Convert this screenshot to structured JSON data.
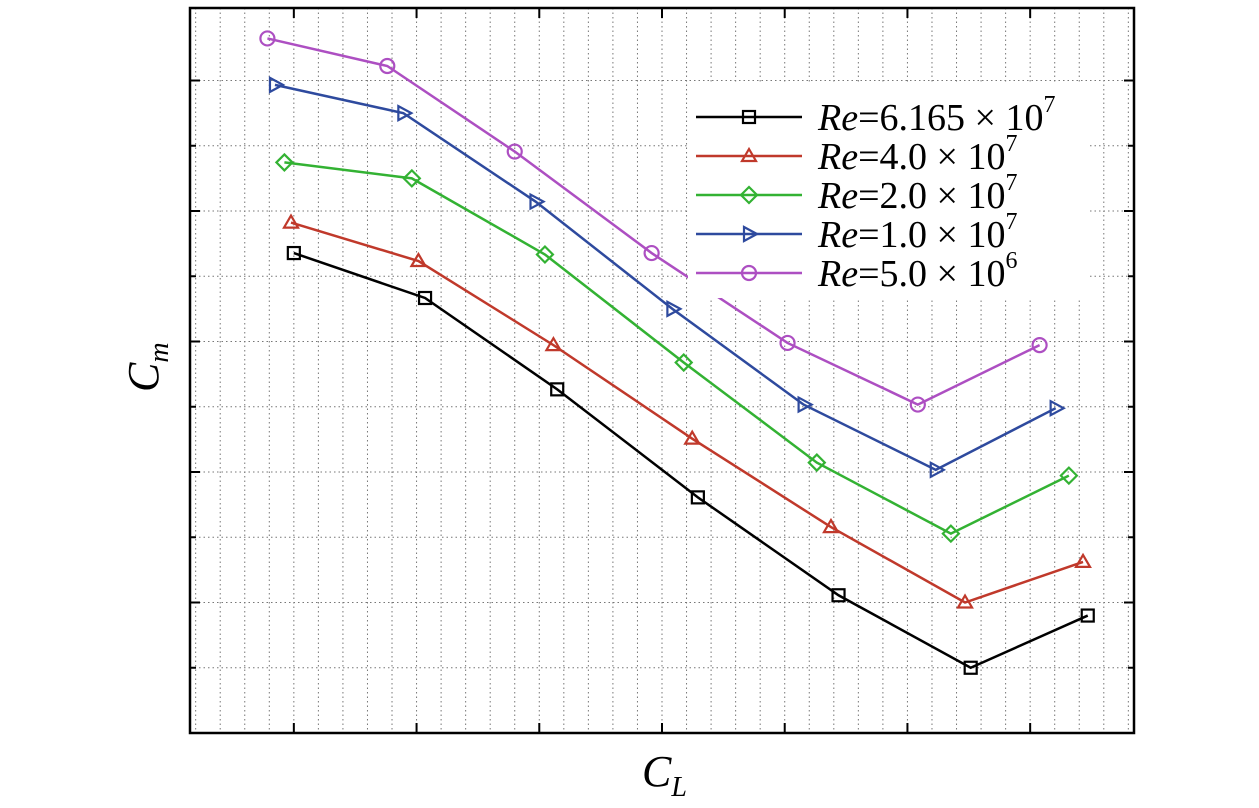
{
  "chart_data": {
    "type": "line",
    "title": "",
    "xlabel": {
      "base": "C",
      "sub": "L"
    },
    "ylabel": {
      "base": "C",
      "sub": "m"
    },
    "tick_labels_shown": false,
    "xlim": [
      0,
      1
    ],
    "ylim": [
      0,
      1
    ],
    "x_major_ticks": [
      0.11,
      0.24,
      0.37,
      0.5,
      0.63,
      0.76,
      0.89
    ],
    "y_major_ticks": [
      0.09,
      0.18,
      0.27,
      0.36,
      0.45,
      0.54,
      0.63,
      0.72,
      0.81,
      0.9
    ],
    "grid": true,
    "legend_position": "top-right",
    "series": [
      {
        "name": "Re=6.165 × 10^7",
        "label": {
          "italic": "Re",
          "text": "=6.165 × 10",
          "sup": "7"
        },
        "color": "#000000",
        "marker": "square",
        "x": [
          0.11,
          0.249,
          0.389,
          0.538,
          0.687,
          0.827,
          0.951
        ],
        "y": [
          0.662,
          0.6,
          0.474,
          0.325,
          0.19,
          0.09,
          0.162
        ]
      },
      {
        "name": "Re=4.0 × 10^7",
        "label": {
          "italic": "Re",
          "text": "=4.0 × 10",
          "sup": "7"
        },
        "color": "#c0392b",
        "marker": "triangle-up",
        "x": [
          0.107,
          0.242,
          0.385,
          0.532,
          0.679,
          0.821,
          0.946
        ],
        "y": [
          0.704,
          0.651,
          0.535,
          0.406,
          0.284,
          0.18,
          0.236
        ]
      },
      {
        "name": "Re=2.0 × 10^7",
        "label": {
          "italic": "Re",
          "text": "=2.0 × 10",
          "sup": "7"
        },
        "color": "#33b233",
        "marker": "diamond",
        "x": [
          0.1,
          0.235,
          0.376,
          0.523,
          0.664,
          0.806,
          0.931
        ],
        "y": [
          0.787,
          0.765,
          0.66,
          0.511,
          0.373,
          0.275,
          0.355
        ]
      },
      {
        "name": "Re=1.0 × 10^7",
        "label": {
          "italic": "Re",
          "text": "=1.0 × 10",
          "sup": "7"
        },
        "color": "#2e4a9e",
        "marker": "triangle-right",
        "x": [
          0.09,
          0.226,
          0.366,
          0.511,
          0.65,
          0.79,
          0.917
        ],
        "y": [
          0.894,
          0.855,
          0.733,
          0.585,
          0.453,
          0.363,
          0.448
        ]
      },
      {
        "name": "Re=5.0 × 10^6",
        "label": {
          "italic": "Re",
          "text": "=5.0 × 10",
          "sup": "6"
        },
        "color": "#ad4fc2",
        "marker": "circle",
        "x": [
          0.082,
          0.209,
          0.344,
          0.489,
          0.633,
          0.771,
          0.9
        ],
        "y": [
          0.958,
          0.92,
          0.802,
          0.662,
          0.538,
          0.453,
          0.535
        ]
      }
    ]
  }
}
